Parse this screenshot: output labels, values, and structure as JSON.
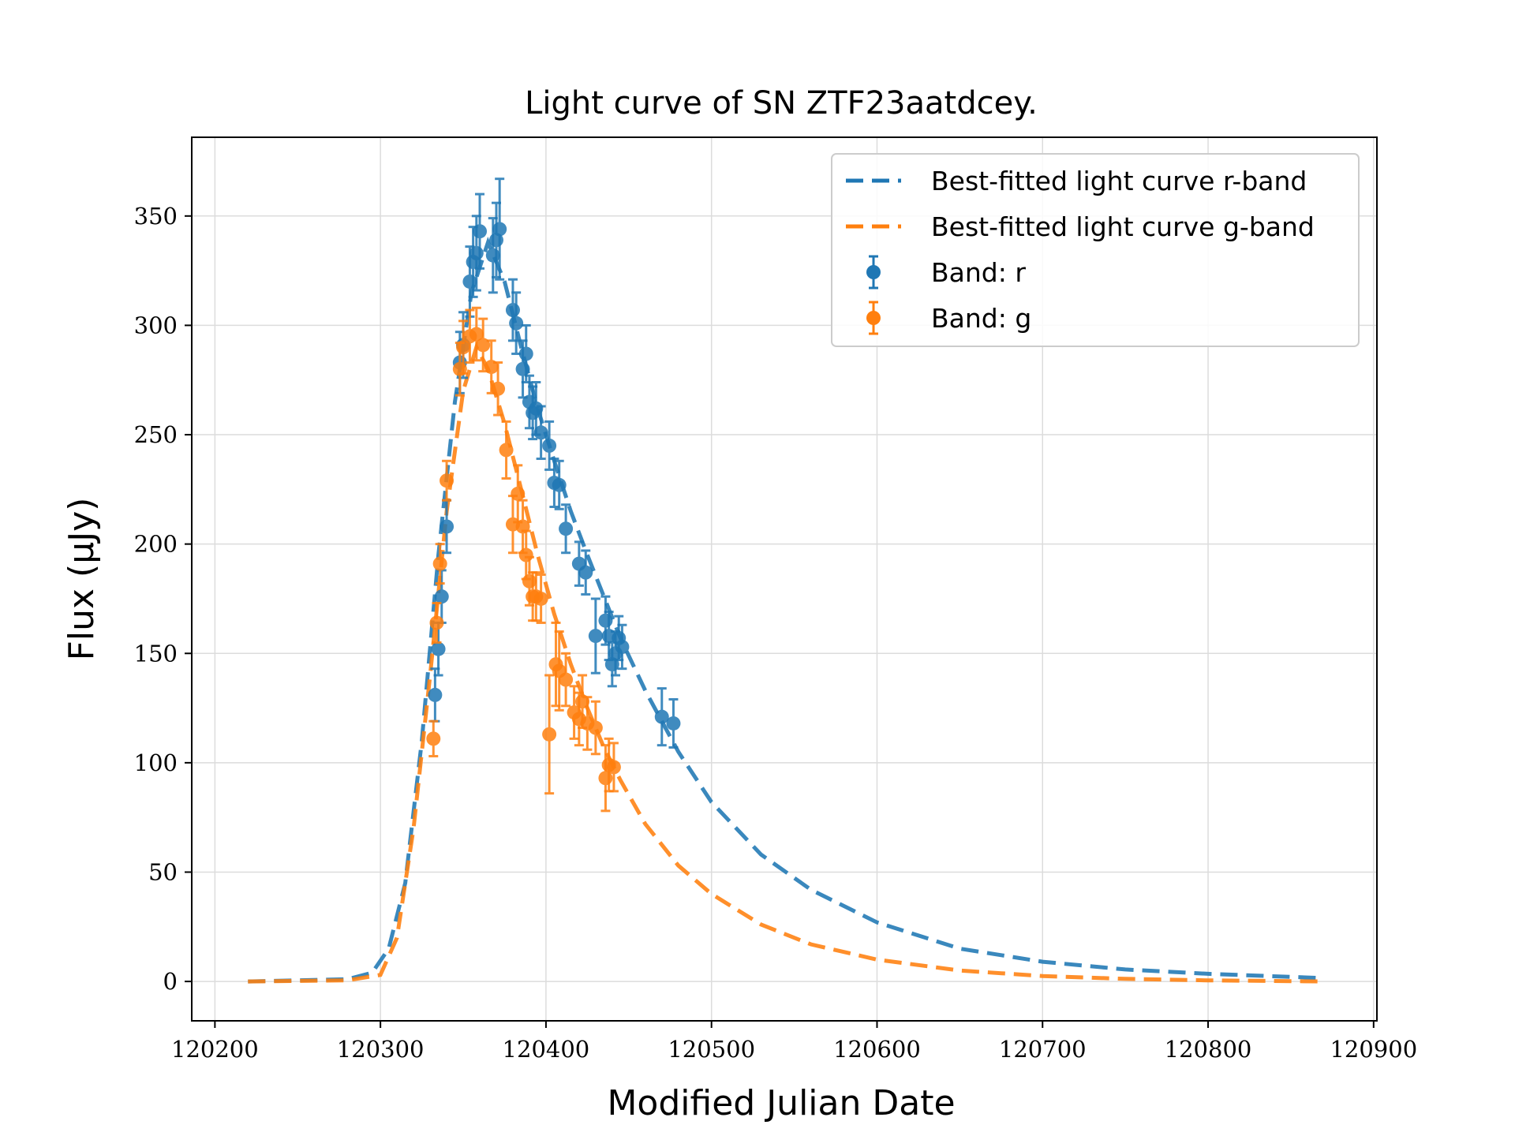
{
  "chart_data": {
    "type": "scatter",
    "title": "Light curve of SN ZTF23aatdcey.",
    "xlabel": "Modified Julian Date",
    "ylabel": "Flux (μJy)",
    "xlim": [
      120186,
      120902
    ],
    "ylim": [
      -18,
      386
    ],
    "xticks": [
      120200,
      120300,
      120400,
      120500,
      120600,
      120700,
      120800,
      120900
    ],
    "yticks": [
      0,
      50,
      100,
      150,
      200,
      250,
      300,
      350
    ],
    "grid": true,
    "legend_position": "top-right",
    "colors": {
      "r": "#1f77b4",
      "g": "#ff7f0e"
    },
    "series": [
      {
        "name": "Best-fitted light curve r-band",
        "kind": "fit",
        "color": "#1f77b4",
        "x": [
          120220,
          120280,
          120295,
          120305,
          120315,
          120325,
          120335,
          120345,
          120355,
          120365,
          120375,
          120385,
          120395,
          120405,
          120415,
          120425,
          120435,
          120445,
          120460,
          120480,
          120500,
          120530,
          120560,
          120600,
          120650,
          120700,
          120750,
          120800,
          120870
        ],
        "y": [
          0,
          1,
          4,
          15,
          45,
          110,
          195,
          265,
          315,
          338,
          320,
          290,
          262,
          238,
          215,
          195,
          176,
          157,
          133,
          105,
          82,
          58,
          42,
          27,
          15,
          9,
          5.5,
          3.5,
          1.5
        ]
      },
      {
        "name": "Best-fitted light curve g-band",
        "kind": "fit",
        "color": "#ff7f0e",
        "x": [
          120220,
          120280,
          120300,
          120310,
          120320,
          120330,
          120340,
          120350,
          120358,
          120365,
          120375,
          120385,
          120395,
          120405,
          120415,
          120425,
          120435,
          120445,
          120460,
          120480,
          120500,
          120530,
          120560,
          120600,
          120650,
          120700,
          120750,
          120800,
          120870
        ],
        "y": [
          0,
          0.5,
          3,
          20,
          70,
          140,
          215,
          270,
          290,
          280,
          255,
          225,
          195,
          168,
          145,
          125,
          107,
          92,
          72,
          53,
          40,
          26,
          17,
          10,
          5,
          2.5,
          1.2,
          0.5,
          0
        ]
      },
      {
        "name": "Band: r",
        "kind": "points",
        "color": "#1f77b4",
        "x": [
          120333,
          120335,
          120337,
          120340,
          120348,
          120350,
          120354,
          120356,
          120358,
          120360,
          120368,
          120370,
          120372,
          120380,
          120382,
          120386,
          120388,
          120390,
          120392,
          120394,
          120397,
          120402,
          120405,
          120408,
          120412,
          120420,
          120424,
          120430,
          120436,
          120438,
          120440,
          120442,
          120444,
          120446,
          120470,
          120477
        ],
        "y": [
          131,
          152,
          176,
          208,
          283,
          291,
          320,
          329,
          333,
          343,
          332,
          339,
          344,
          307,
          301,
          280,
          287,
          265,
          260,
          262,
          251,
          245,
          228,
          227,
          207,
          191,
          187,
          158,
          165,
          158,
          145,
          150,
          157,
          153,
          121,
          118
        ],
        "err": [
          12,
          12,
          12,
          12,
          14,
          15,
          16,
          16,
          17,
          17,
          17,
          17,
          23,
          14,
          14,
          13,
          13,
          12,
          12,
          12,
          12,
          11,
          11,
          11,
          11,
          10,
          10,
          17,
          11,
          11,
          10,
          10,
          10,
          10,
          13,
          11
        ]
      },
      {
        "name": "Band: g",
        "kind": "points",
        "color": "#ff7f0e",
        "x": [
          120332,
          120334,
          120336,
          120340,
          120348,
          120350,
          120354,
          120358,
          120362,
          120367,
          120371,
          120376,
          120380,
          120383,
          120386,
          120388,
          120390,
          120392,
          120394,
          120397,
          120402,
          120406,
          120408,
          120412,
          120417,
          120420,
          120422,
          120425,
          120430,
          120436,
          120438,
          120441
        ],
        "y": [
          111,
          164,
          191,
          229,
          280,
          290,
          295,
          296,
          291,
          281,
          271,
          243,
          209,
          223,
          208,
          195,
          183,
          176,
          176,
          175,
          113,
          145,
          142,
          138,
          123,
          120,
          128,
          118,
          116,
          93,
          99,
          98
        ],
        "err": [
          8,
          9,
          9,
          9,
          12,
          12,
          12,
          12,
          12,
          12,
          12,
          13,
          13,
          13,
          12,
          11,
          11,
          11,
          11,
          11,
          27,
          19,
          18,
          12,
          12,
          12,
          12,
          12,
          12,
          15,
          12,
          11
        ]
      }
    ]
  }
}
